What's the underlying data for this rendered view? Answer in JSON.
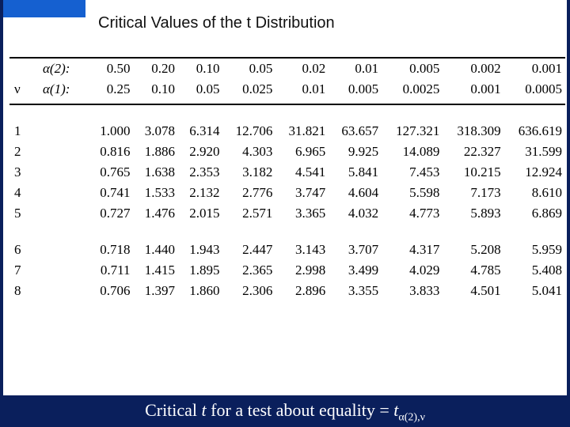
{
  "title": "Critical Values of the t Distribution",
  "table": {
    "type": "table",
    "nu_symbol": "ν",
    "alpha2_label": "α(2):",
    "alpha1_label": "α(1):",
    "alpha2": [
      "0.50",
      "0.20",
      "0.10",
      "0.05",
      "0.02",
      "0.01",
      "0.005",
      "0.002",
      "0.001"
    ],
    "alpha1": [
      "0.25",
      "0.10",
      "0.05",
      "0.025",
      "0.01",
      "0.005",
      "0.0025",
      "0.001",
      "0.0005"
    ],
    "nu": [
      "1",
      "2",
      "3",
      "4",
      "5",
      "6",
      "7",
      "8"
    ],
    "rows": [
      [
        "1.000",
        "3.078",
        "6.314",
        "12.706",
        "31.821",
        "63.657",
        "127.321",
        "318.309",
        "636.619"
      ],
      [
        "0.816",
        "1.886",
        "2.920",
        "4.303",
        "6.965",
        "9.925",
        "14.089",
        "22.327",
        "31.599"
      ],
      [
        "0.765",
        "1.638",
        "2.353",
        "3.182",
        "4.541",
        "5.841",
        "7.453",
        "10.215",
        "12.924"
      ],
      [
        "0.741",
        "1.533",
        "2.132",
        "2.776",
        "3.747",
        "4.604",
        "5.598",
        "7.173",
        "8.610"
      ],
      [
        "0.727",
        "1.476",
        "2.015",
        "2.571",
        "3.365",
        "4.032",
        "4.773",
        "5.893",
        "6.869"
      ],
      [
        "0.718",
        "1.440",
        "1.943",
        "2.447",
        "3.143",
        "3.707",
        "4.317",
        "5.208",
        "5.959"
      ],
      [
        "0.711",
        "1.415",
        "1.895",
        "2.365",
        "2.998",
        "3.499",
        "4.029",
        "4.785",
        "5.408"
      ],
      [
        "0.706",
        "1.397",
        "1.860",
        "2.306",
        "2.896",
        "3.355",
        "3.833",
        "4.501",
        "5.041"
      ]
    ]
  },
  "caption": {
    "prefix": "Critical ",
    "t": "t",
    "mid": " for a test about equality = ",
    "t2": "t",
    "sub": "α(2),ν"
  },
  "colors": {
    "page_bg": "#0a1f5c",
    "panel_bg": "#ffffff",
    "header_blue": "#1560d0",
    "text": "#000000",
    "caption_text": "#ffffff",
    "rule": "#000000"
  },
  "fontsizes": {
    "title": 20,
    "table": 17,
    "caption": 22
  }
}
